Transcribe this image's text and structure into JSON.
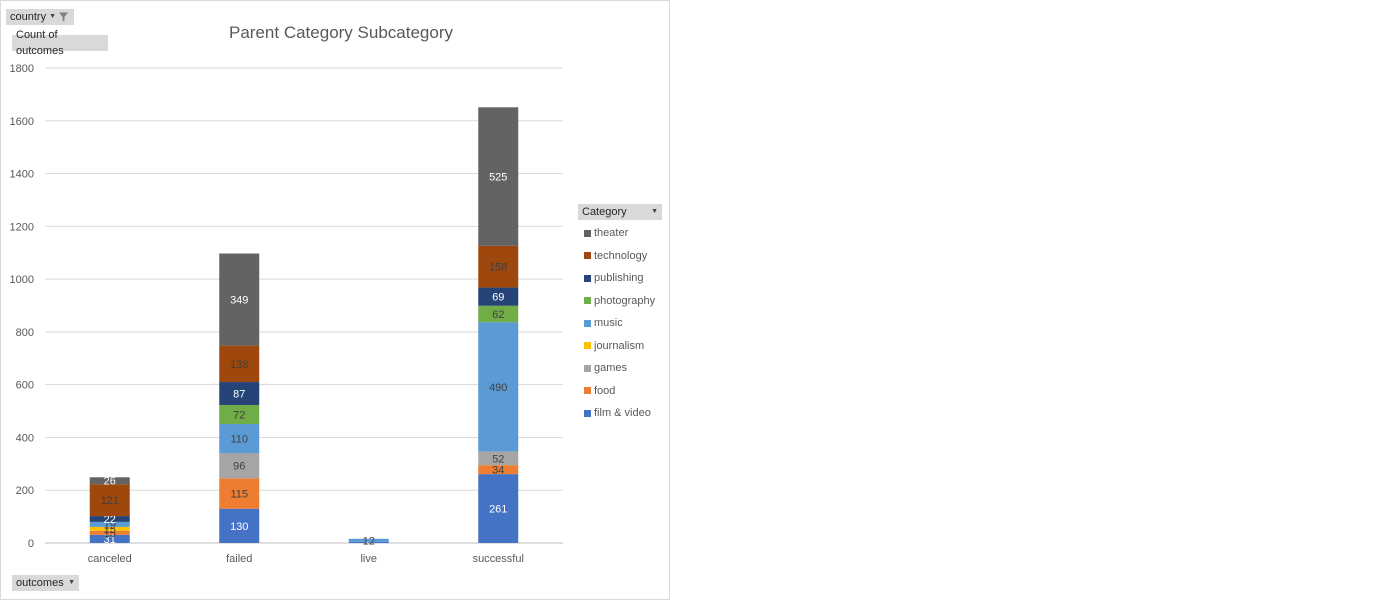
{
  "filters": {
    "country_label": "country",
    "values_label": "Count of outcomes",
    "axis_field_label": "outcomes",
    "legend_field_label": "Category"
  },
  "chart_data": {
    "type": "bar",
    "stacked": true,
    "title": "Parent Category Subcategory",
    "xlabel": "",
    "ylabel": "",
    "ylim": [
      0,
      1800
    ],
    "yticks": [
      0,
      200,
      400,
      600,
      800,
      1000,
      1200,
      1400,
      1600,
      1800
    ],
    "grid": true,
    "legend_position": "right",
    "categories": [
      "canceled",
      "failed",
      "live",
      "successful"
    ],
    "series": [
      {
        "name": "film & video",
        "color": "#4472c4",
        "values": [
          31,
          130,
          4,
          261
        ]
      },
      {
        "name": "food",
        "color": "#ed7d31",
        "values": [
          15,
          115,
          0,
          34
        ]
      },
      {
        "name": "games",
        "color": "#a5a5a5",
        "values": [
          0,
          96,
          0,
          52
        ]
      },
      {
        "name": "journalism",
        "color": "#ffc000",
        "values": [
          15,
          0,
          0,
          0
        ]
      },
      {
        "name": "music",
        "color": "#5b9bd5",
        "values": [
          19,
          110,
          12,
          490
        ]
      },
      {
        "name": "photography",
        "color": "#70ad47",
        "values": [
          0,
          72,
          0,
          62
        ]
      },
      {
        "name": "publishing",
        "color": "#264478",
        "values": [
          22,
          87,
          0,
          69
        ]
      },
      {
        "name": "technology",
        "color": "#9e480e",
        "values": [
          121,
          138,
          0,
          158
        ]
      },
      {
        "name": "theater",
        "color": "#636363",
        "values": [
          26,
          349,
          0,
          525
        ]
      }
    ]
  }
}
